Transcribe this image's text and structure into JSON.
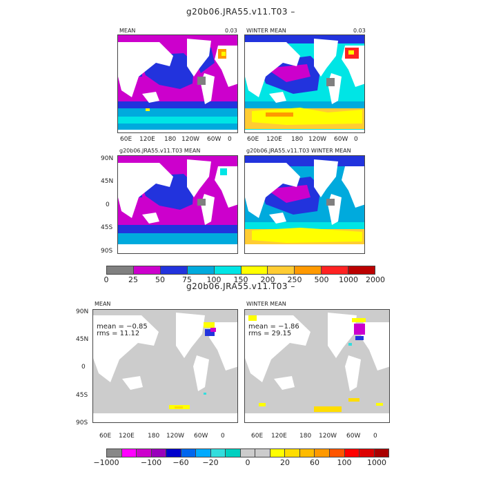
{
  "top": {
    "title": "g20b06.JRA55.v11.T03  –",
    "panels": [
      {
        "label": "MEAN",
        "value": "0.03"
      },
      {
        "label": "WINTER MEAN",
        "value": "0.03"
      },
      {
        "label": "g20b06.JRA55.v11.T03 MEAN"
      },
      {
        "label": "g20b06.JRA55.v11.T03 WINTER MEAN"
      }
    ],
    "lon_ticks": [
      "60E",
      "120E",
      "180",
      "120W",
      "60W",
      "0"
    ],
    "lat_ticks": [
      "90N",
      "45N",
      "0",
      "45S",
      "90S"
    ],
    "colorbar": {
      "colors": [
        "#808080",
        "#cc00cc",
        "#2233dd",
        "#00aadd",
        "#00e5e5",
        "#ffff00",
        "#ffcc33",
        "#ff9900",
        "#ff2222",
        "#bb0000"
      ],
      "labels": [
        "0",
        "25",
        "50",
        "75",
        "100",
        "150",
        "200",
        "250",
        "500",
        "1000",
        "2000"
      ]
    }
  },
  "bottom": {
    "title": "g20b06.JRA55.v11.T03  –",
    "panels": [
      {
        "label": "MEAN",
        "mean": "mean = −0.85",
        "rms": "rms = 11.12"
      },
      {
        "label": "WINTER MEAN",
        "mean": "mean = −1.86",
        "rms": "rms = 29.15"
      }
    ],
    "lon_ticks": [
      "60E",
      "120E",
      "180",
      "120W",
      "60W",
      "0"
    ],
    "lat_ticks": [
      "90N",
      "45N",
      "0",
      "45S",
      "90S"
    ],
    "colorbar": {
      "colors": [
        "#888888",
        "#ff00ff",
        "#cc00cc",
        "#9900bb",
        "#0000cc",
        "#0066ee",
        "#00aaff",
        "#33dddd",
        "#00d0c0",
        "#cccccc",
        "#cccccc",
        "#ffff00",
        "#ffdd00",
        "#ffbb00",
        "#ff9900",
        "#ff5500",
        "#ff0000",
        "#dd0000",
        "#aa0000"
      ],
      "labels": [
        "−1000",
        "−100",
        "−60",
        "−20",
        "0",
        "20",
        "60",
        "100",
        "1000"
      ]
    }
  }
}
